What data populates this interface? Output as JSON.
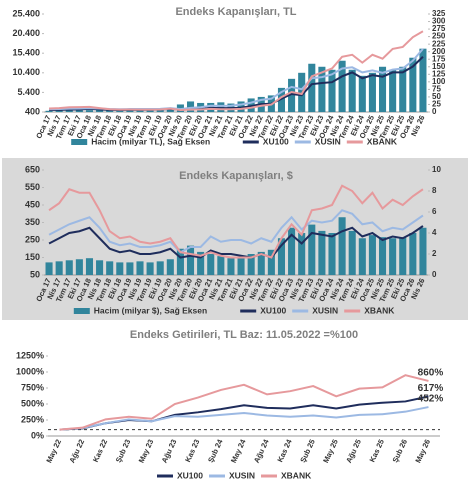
{
  "chart_data": [
    {
      "type": "combo",
      "title": "Endeks Kapanışları, TL",
      "categories": [
        "Oca 17",
        "Nis 17",
        "Tem 17",
        "Eki 17",
        "Oca 18",
        "Nis 18",
        "Tem 18",
        "Eki 18",
        "Oca 19",
        "Nis 19",
        "Tem 19",
        "Eki 19",
        "Oca 20",
        "Nis 20",
        "Tem 20",
        "Eki 20",
        "Oca 21",
        "Nis 21",
        "Tem 21",
        "Eki 21",
        "Oca 22",
        "Nis 22",
        "Tem 22",
        "Eki 22",
        "Oca 23",
        "Nis 23",
        "Tem 23",
        "Eki 23",
        "Oca 24",
        "Nis 24",
        "Tem 24",
        "Eki 24",
        "Oca 25",
        "Nis 25",
        "Tem 25",
        "Eki 25",
        "Oca 26",
        "Nis 26"
      ],
      "ylim": [
        400,
        25400
      ],
      "yticks": [
        400,
        {
          "value": 5400,
          "label": "5.400"
        },
        {
          "value": 10400,
          "label": "10.400"
        },
        {
          "value": 15400,
          "label": "15.400"
        },
        {
          "value": 20400,
          "label": "20.400"
        },
        {
          "value": 25400,
          "label": "25.400"
        }
      ],
      "y2lim": [
        0,
        325
      ],
      "y2ticks": [
        0,
        25,
        50,
        75,
        100,
        125,
        150,
        175,
        200,
        225,
        250,
        275,
        300,
        325
      ],
      "series": [
        {
          "name": "Hacim (milyar TL), Sağ Eksen",
          "type": "bar",
          "axis": "y2",
          "color": "#31859c",
          "values": [
            4,
            5,
            5,
            6,
            6,
            7,
            8,
            9,
            8,
            9,
            8,
            10,
            12,
            25,
            35,
            30,
            30,
            32,
            28,
            35,
            45,
            50,
            55,
            80,
            110,
            130,
            160,
            150,
            140,
            170,
            140,
            120,
            130,
            150,
            140,
            150,
            180,
            210
          ]
        },
        {
          "name": "XU100",
          "type": "line",
          "color": "#1f2d5c",
          "values": [
            900,
            950,
            1020,
            1050,
            1150,
            1050,
            950,
            920,
            950,
            950,
            960,
            1000,
            1150,
            950,
            1100,
            1150,
            1450,
            1400,
            1400,
            1500,
            1900,
            2400,
            2500,
            3800,
            5000,
            4700,
            7500,
            7800,
            8000,
            9500,
            10500,
            9000,
            9800,
            9400,
            10500,
            10500,
            12000,
            14500
          ]
        },
        {
          "name": "XUSIN",
          "type": "line",
          "color": "#9cb9e3",
          "values": [
            1100,
            1150,
            1250,
            1300,
            1400,
            1300,
            1150,
            1100,
            1150,
            1150,
            1150,
            1200,
            1400,
            1150,
            1450,
            1600,
            2000,
            1950,
            2000,
            2300,
            2800,
            3500,
            3800,
            5500,
            6800,
            6200,
            9000,
            9300,
            10000,
            11500,
            11800,
            10500,
            11000,
            10400,
            11200,
            11500,
            13500,
            16500
          ]
        },
        {
          "name": "XBANK",
          "type": "line",
          "color": "#e6999c",
          "values": [
            1300,
            1400,
            1600,
            1650,
            1700,
            1400,
            1100,
            1000,
            1050,
            1000,
            1000,
            1050,
            1250,
            900,
            1000,
            1050,
            1200,
            1100,
            1100,
            1200,
            1500,
            2000,
            2300,
            4200,
            5500,
            5000,
            9500,
            10500,
            11500,
            14500,
            15000,
            13000,
            15000,
            14000,
            16500,
            17000,
            19500,
            21000
          ]
        }
      ]
    },
    {
      "type": "combo",
      "title": "Endeks Kapanışları, $",
      "background": "#d9d9d9",
      "categories": [
        "Oca 17",
        "Nis 17",
        "Tem 17",
        "Eki 17",
        "Oca 18",
        "Nis 18",
        "Tem 18",
        "Eki 18",
        "Oca 19",
        "Nis 19",
        "Tem 19",
        "Eki 19",
        "Oca 20",
        "Nis 20",
        "Tem 20",
        "Eki 20",
        "Oca 21",
        "Nis 21",
        "Tem 21",
        "Eki 21",
        "Oca 22",
        "Nis 22",
        "Tem 22",
        "Eki 22",
        "Oca 23",
        "Nis 23",
        "Tem 23",
        "Eki 23",
        "Oca 24",
        "Nis 24",
        "Tem 24",
        "Eki 24",
        "Oca 25",
        "Nis 25",
        "Tem 25",
        "Eki 25",
        "Oca 26",
        "Nis 26"
      ],
      "ylim": [
        50,
        650
      ],
      "yticks": [
        50,
        150,
        250,
        350,
        450,
        550,
        650
      ],
      "y2lim": [
        0,
        10
      ],
      "y2ticks": [
        0,
        2,
        4,
        6,
        8,
        10
      ],
      "series": [
        {
          "name": "Hacim (milyar $), Sağ Eksen",
          "type": "bar",
          "axis": "y2",
          "color": "#31859c",
          "values": [
            1.2,
            1.3,
            1.4,
            1.5,
            1.6,
            1.4,
            1.3,
            1.2,
            1.2,
            1.3,
            1.2,
            1.3,
            1.5,
            2.5,
            2.8,
            2.2,
            2.0,
            1.8,
            1.6,
            1.7,
            2.0,
            2.2,
            2.4,
            3.5,
            4.5,
            4.0,
            4.8,
            4.2,
            4.0,
            5.5,
            4.2,
            3.5,
            3.8,
            3.6,
            3.5,
            3.6,
            4.0,
            4.5
          ]
        },
        {
          "name": "XU100",
          "type": "line",
          "color": "#1f2d5c",
          "values": [
            230,
            260,
            290,
            300,
            320,
            260,
            200,
            180,
            190,
            170,
            170,
            180,
            200,
            150,
            160,
            150,
            190,
            170,
            170,
            160,
            150,
            170,
            150,
            220,
            280,
            230,
            290,
            280,
            270,
            300,
            320,
            270,
            290,
            250,
            270,
            260,
            290,
            330
          ]
        },
        {
          "name": "XUSIN",
          "type": "line",
          "color": "#9cb9e3",
          "values": [
            280,
            310,
            340,
            360,
            380,
            320,
            240,
            220,
            230,
            210,
            210,
            220,
            240,
            180,
            210,
            210,
            270,
            240,
            250,
            250,
            230,
            260,
            240,
            320,
            380,
            310,
            360,
            350,
            360,
            420,
            400,
            340,
            350,
            300,
            320,
            310,
            350,
            390
          ]
        },
        {
          "name": "XBANK",
          "type": "line",
          "color": "#e6999c",
          "values": [
            420,
            460,
            540,
            520,
            520,
            420,
            300,
            260,
            270,
            240,
            230,
            240,
            260,
            180,
            170,
            160,
            180,
            160,
            150,
            150,
            150,
            170,
            150,
            260,
            340,
            280,
            420,
            430,
            450,
            560,
            530,
            460,
            520,
            430,
            480,
            450,
            500,
            540
          ]
        }
      ]
    },
    {
      "type": "line",
      "title": "Endeks Getirileri, TL Baz: 11.05.2022 =%100",
      "categories": [
        "May 22",
        "Ağu 22",
        "Kas 22",
        "Şub 23",
        "May 23",
        "Ağu 23",
        "Kas 23",
        "Şub 24",
        "May 24",
        "Ağu 24",
        "Kas 24",
        "Şub 25",
        "May 25",
        "Ağu 25",
        "Kas 25",
        "Şub 26",
        "May 26"
      ],
      "ylim": [
        0,
        1250
      ],
      "yticks": [
        {
          "value": 0,
          "label": "0%"
        },
        {
          "value": 250,
          "label": "250%"
        },
        {
          "value": 500,
          "label": "500%"
        },
        {
          "value": 750,
          "label": "750%"
        },
        {
          "value": 1000,
          "label": "1000%"
        },
        {
          "value": 1250,
          "label": "1250%"
        }
      ],
      "reference_line": 100,
      "series": [
        {
          "name": "XU100",
          "color": "#1f2d5c",
          "end_label": "617%",
          "values": [
            100,
            120,
            200,
            250,
            230,
            330,
            370,
            420,
            480,
            440,
            430,
            480,
            430,
            490,
            520,
            540,
            617
          ]
        },
        {
          "name": "XUSIN",
          "color": "#9cb9e3",
          "end_label": "452%",
          "values": [
            100,
            125,
            200,
            260,
            230,
            310,
            300,
            330,
            360,
            320,
            300,
            320,
            290,
            330,
            340,
            380,
            452
          ]
        },
        {
          "name": "XBANK",
          "color": "#e6999c",
          "end_label": "860%",
          "values": [
            100,
            130,
            260,
            300,
            270,
            500,
            600,
            720,
            800,
            650,
            700,
            780,
            620,
            740,
            760,
            950,
            860
          ]
        }
      ]
    }
  ]
}
